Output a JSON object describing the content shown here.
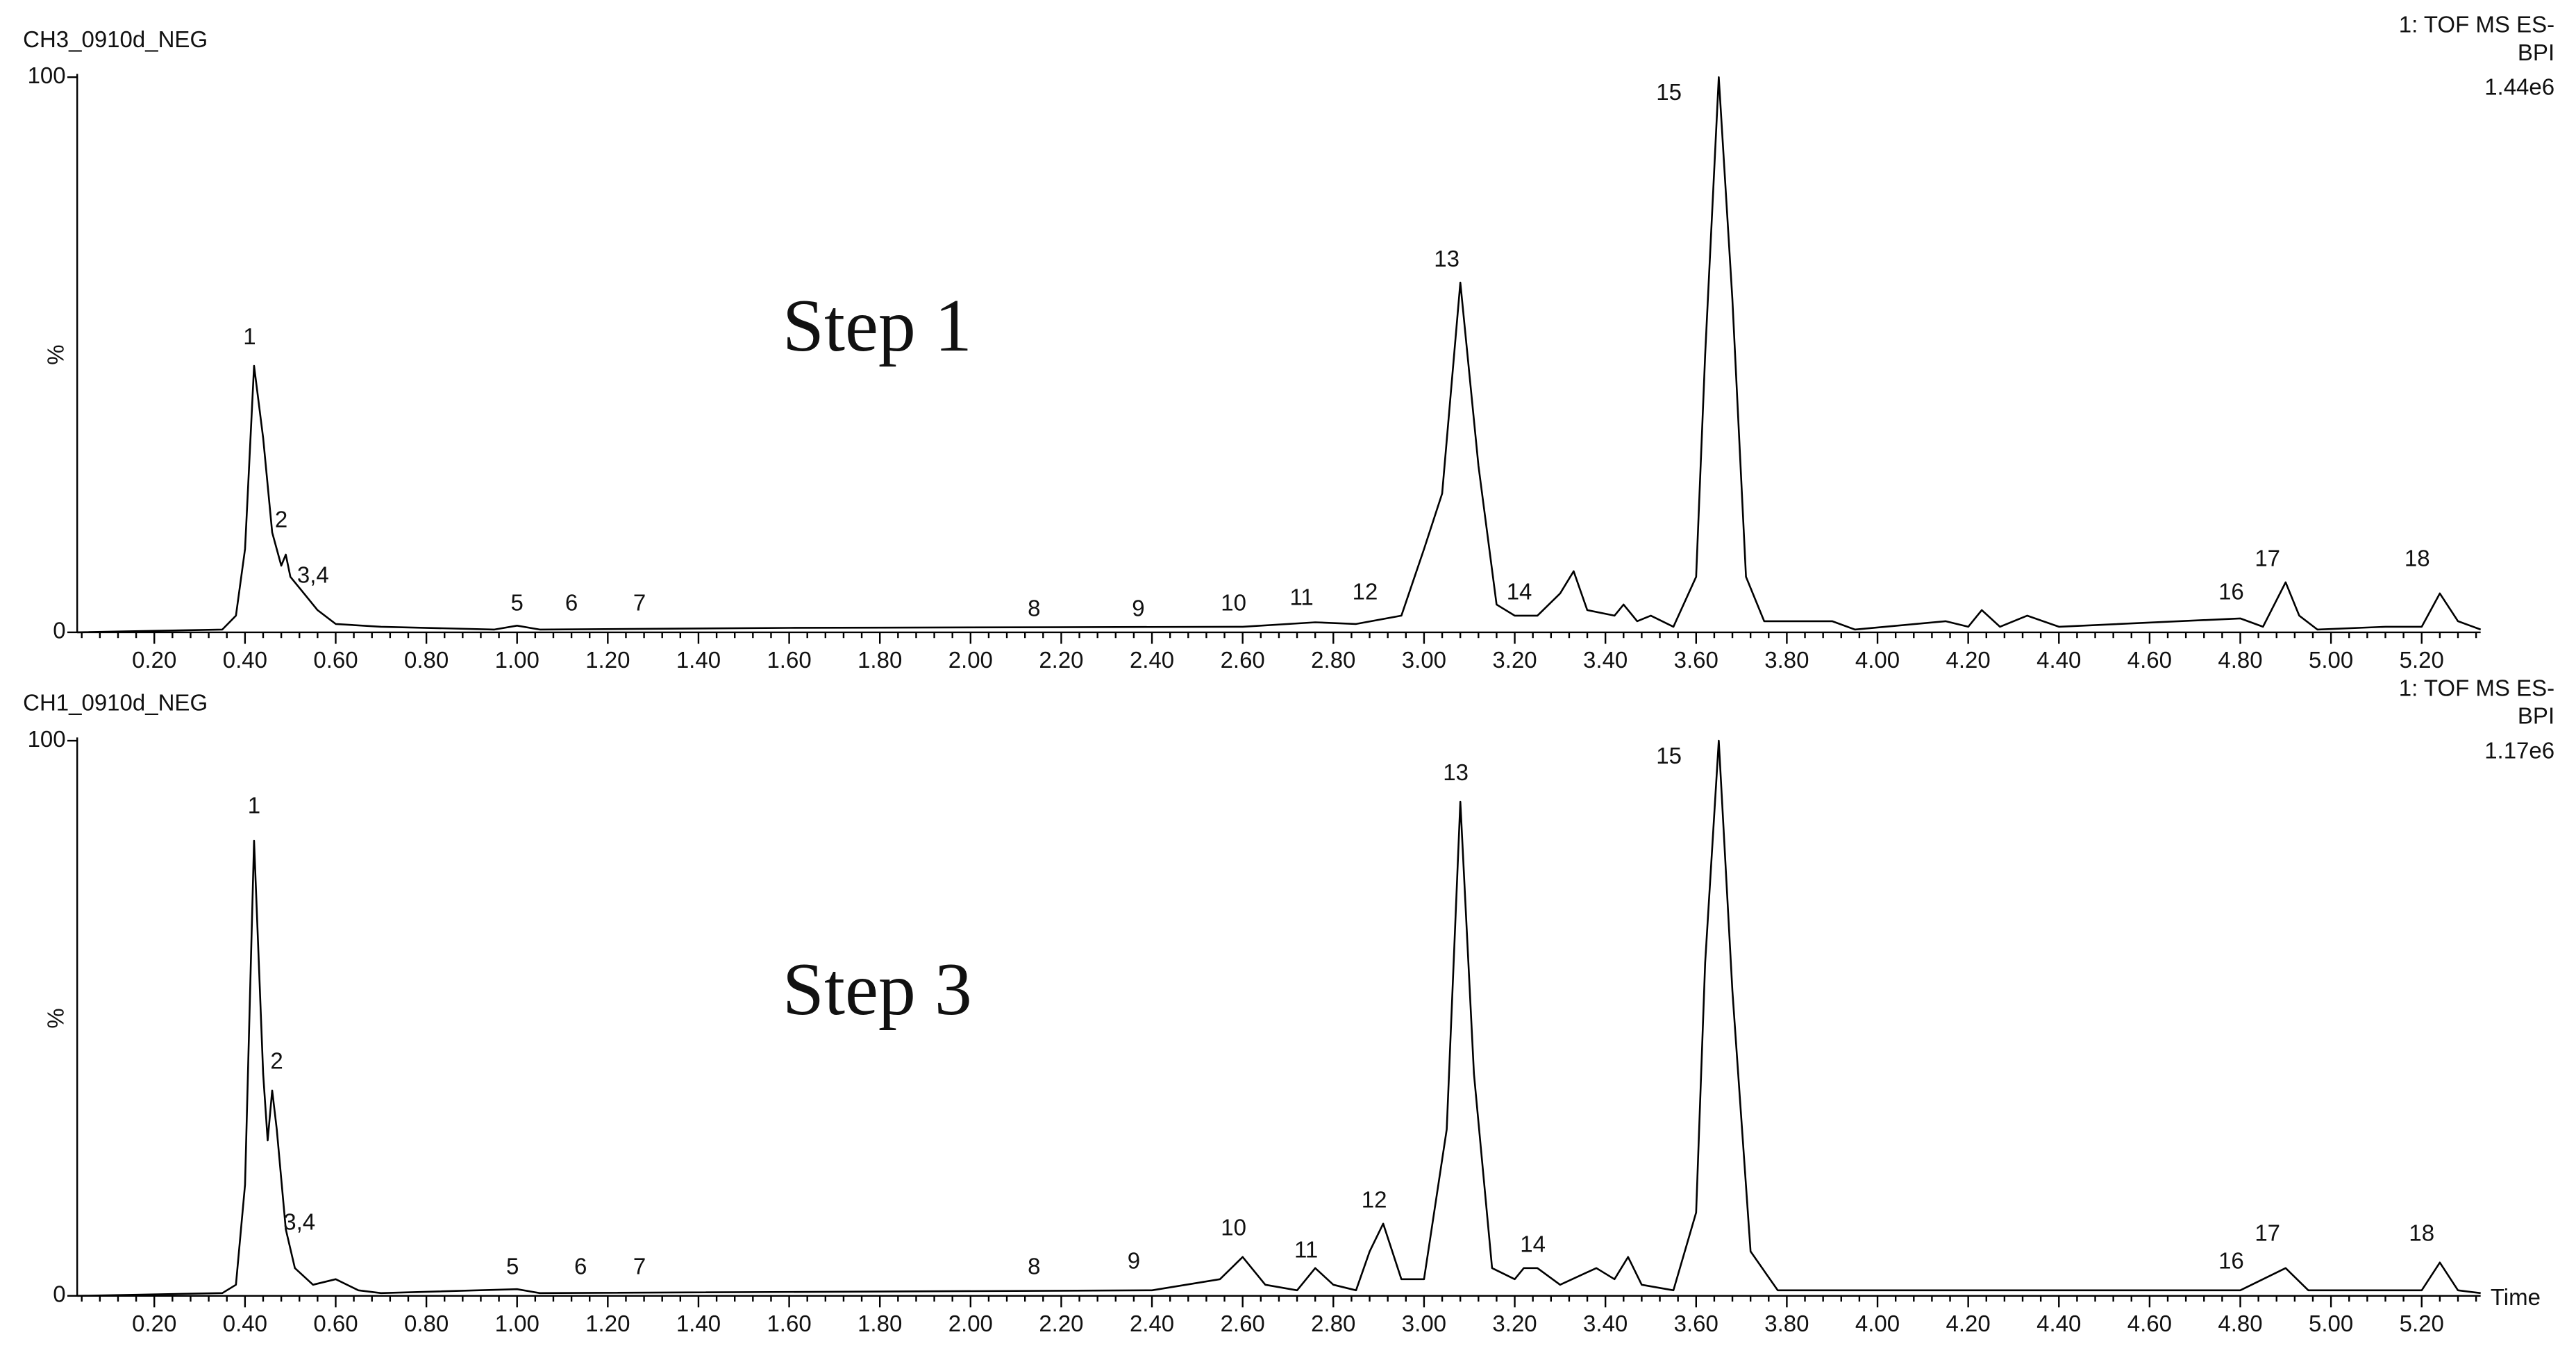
{
  "chart_data": [
    {
      "type": "line",
      "title": "CH3_0910d_NEG",
      "header": [
        "1: TOF MS ES-",
        "BPI",
        "1.44e6"
      ],
      "annotation": "Step 1",
      "y_label": "%",
      "color": "#000000",
      "xlim": [
        0.03,
        5.33
      ],
      "ylim": [
        0,
        100
      ],
      "yticks": [
        0,
        100
      ],
      "xticks": [
        {
          "value": 0.2,
          "label": "0.20"
        },
        {
          "value": 0.4,
          "label": "0.40"
        },
        {
          "value": 0.6,
          "label": "0.60"
        },
        {
          "value": 0.8,
          "label": "0.80"
        },
        {
          "value": 1.0,
          "label": "1.00"
        },
        {
          "value": 1.2,
          "label": "1.20"
        },
        {
          "value": 1.4,
          "label": "1.40"
        },
        {
          "value": 1.6,
          "label": "1.60"
        },
        {
          "value": 1.8,
          "label": "1.80"
        },
        {
          "value": 2.0,
          "label": "2.00"
        },
        {
          "value": 2.2,
          "label": "2.20"
        },
        {
          "value": 2.4,
          "label": "2.40"
        },
        {
          "value": 2.6,
          "label": "2.60"
        },
        {
          "value": 2.8,
          "label": "2.80"
        },
        {
          "value": 3.0,
          "label": "3.00"
        },
        {
          "value": 3.2,
          "label": "3.20"
        },
        {
          "value": 3.4,
          "label": "3.40"
        },
        {
          "value": 3.6,
          "label": "3.60"
        },
        {
          "value": 3.8,
          "label": "3.80"
        },
        {
          "value": 4.0,
          "label": "4.00"
        },
        {
          "value": 4.2,
          "label": "4.20"
        },
        {
          "value": 4.4,
          "label": "4.40"
        },
        {
          "value": 4.6,
          "label": "4.60"
        },
        {
          "value": 4.8,
          "label": "4.80"
        },
        {
          "value": 5.0,
          "label": "5.00"
        },
        {
          "value": 5.2,
          "label": "5.20"
        }
      ],
      "x": [
        0.03,
        0.35,
        0.38,
        0.4,
        0.42,
        0.44,
        0.46,
        0.48,
        0.49,
        0.5,
        0.53,
        0.56,
        0.6,
        0.7,
        0.95,
        1.0,
        1.05,
        1.6,
        2.6,
        2.76,
        2.85,
        2.95,
        3.0,
        3.04,
        3.08,
        3.12,
        3.16,
        3.2,
        3.25,
        3.3,
        3.33,
        3.36,
        3.42,
        3.44,
        3.47,
        3.5,
        3.55,
        3.6,
        3.62,
        3.65,
        3.68,
        3.71,
        3.75,
        3.9,
        3.95,
        4.15,
        4.2,
        4.23,
        4.27,
        4.33,
        4.4,
        4.8,
        4.85,
        4.9,
        4.93,
        4.97,
        5.12,
        5.2,
        5.24,
        5.28,
        5.33
      ],
      "values": [
        0,
        0.5,
        3,
        15,
        48,
        35,
        18,
        12,
        14,
        10,
        7,
        4,
        1.5,
        1,
        0.5,
        1.2,
        0.5,
        0.8,
        1,
        1.8,
        1.5,
        3,
        15,
        25,
        63,
        30,
        5,
        3,
        3,
        7,
        11,
        4,
        3,
        5,
        2,
        3,
        1,
        10,
        50,
        100,
        60,
        10,
        2,
        2,
        0.5,
        2,
        1,
        4,
        1,
        3,
        1,
        2.5,
        1,
        9,
        3,
        0.5,
        1,
        1,
        7,
        2,
        0.5
      ],
      "peak_labels": [
        {
          "text": "1",
          "x": 0.41,
          "y": 53
        },
        {
          "text": "2",
          "x": 0.48,
          "y": 20
        },
        {
          "text": "3,4",
          "x": 0.55,
          "y": 10
        },
        {
          "text": "5",
          "x": 1.0,
          "y": 5
        },
        {
          "text": "6",
          "x": 1.12,
          "y": 5
        },
        {
          "text": "7",
          "x": 1.27,
          "y": 5
        },
        {
          "text": "8",
          "x": 2.14,
          "y": 4
        },
        {
          "text": "9",
          "x": 2.37,
          "y": 4
        },
        {
          "text": "10",
          "x": 2.58,
          "y": 5
        },
        {
          "text": "11",
          "x": 2.73,
          "y": 6
        },
        {
          "text": "12",
          "x": 2.87,
          "y": 7
        },
        {
          "text": "13",
          "x": 3.05,
          "y": 67
        },
        {
          "text": "14",
          "x": 3.21,
          "y": 7
        },
        {
          "text": "15",
          "x": 3.54,
          "y": 97
        },
        {
          "text": "16",
          "x": 4.78,
          "y": 7
        },
        {
          "text": "17",
          "x": 4.86,
          "y": 13
        },
        {
          "text": "18",
          "x": 5.19,
          "y": 13
        }
      ]
    },
    {
      "type": "line",
      "title": "CH1_0910d_NEG",
      "header": [
        "1: TOF MS ES-",
        "BPI",
        "1.17e6"
      ],
      "annotation": "Step 3",
      "y_label": "%",
      "x_label": "Time",
      "color": "#000000",
      "xlim": [
        0.03,
        5.33
      ],
      "ylim": [
        0,
        100
      ],
      "yticks": [
        0,
        100
      ],
      "xticks": [
        {
          "value": 0.2,
          "label": "0.20"
        },
        {
          "value": 0.4,
          "label": "0.40"
        },
        {
          "value": 0.6,
          "label": "0.60"
        },
        {
          "value": 0.8,
          "label": "0.80"
        },
        {
          "value": 1.0,
          "label": "1.00"
        },
        {
          "value": 1.2,
          "label": "1.20"
        },
        {
          "value": 1.4,
          "label": "1.40"
        },
        {
          "value": 1.6,
          "label": "1.60"
        },
        {
          "value": 1.8,
          "label": "1.80"
        },
        {
          "value": 2.0,
          "label": "2.00"
        },
        {
          "value": 2.2,
          "label": "2.20"
        },
        {
          "value": 2.4,
          "label": "2.40"
        },
        {
          "value": 2.6,
          "label": "2.60"
        },
        {
          "value": 2.8,
          "label": "2.80"
        },
        {
          "value": 3.0,
          "label": "3.00"
        },
        {
          "value": 3.2,
          "label": "3.20"
        },
        {
          "value": 3.4,
          "label": "3.40"
        },
        {
          "value": 3.6,
          "label": "3.60"
        },
        {
          "value": 3.8,
          "label": "3.80"
        },
        {
          "value": 4.0,
          "label": "4.00"
        },
        {
          "value": 4.2,
          "label": "4.20"
        },
        {
          "value": 4.4,
          "label": "4.40"
        },
        {
          "value": 4.6,
          "label": "4.60"
        },
        {
          "value": 4.8,
          "label": "4.80"
        },
        {
          "value": 5.0,
          "label": "5.00"
        },
        {
          "value": 5.2,
          "label": "5.20"
        }
      ],
      "x": [
        0.03,
        0.35,
        0.38,
        0.4,
        0.42,
        0.44,
        0.45,
        0.46,
        0.47,
        0.49,
        0.51,
        0.55,
        0.6,
        0.65,
        0.7,
        1.0,
        1.05,
        2.4,
        2.55,
        2.6,
        2.65,
        2.72,
        2.76,
        2.8,
        2.85,
        2.88,
        2.91,
        2.95,
        3.0,
        3.05,
        3.08,
        3.11,
        3.15,
        3.2,
        3.22,
        3.25,
        3.3,
        3.38,
        3.42,
        3.45,
        3.48,
        3.55,
        3.6,
        3.62,
        3.65,
        3.68,
        3.72,
        3.78,
        4.5,
        4.8,
        4.9,
        4.95,
        5.2,
        5.24,
        5.28,
        5.33
      ],
      "values": [
        0,
        0.5,
        2,
        20,
        82,
        40,
        28,
        37,
        30,
        12,
        5,
        2,
        3,
        1,
        0.5,
        1.2,
        0.5,
        1,
        3,
        7,
        2,
        1,
        5,
        2,
        1,
        8,
        13,
        3,
        3,
        30,
        89,
        40,
        5,
        3,
        5,
        5,
        2,
        5,
        3,
        7,
        2,
        1,
        15,
        60,
        100,
        55,
        8,
        1,
        1,
        1,
        5,
        1,
        1,
        6,
        1,
        0.5
      ],
      "peak_labels": [
        {
          "text": "1",
          "x": 0.42,
          "y": 88
        },
        {
          "text": "2",
          "x": 0.47,
          "y": 42
        },
        {
          "text": "3,4",
          "x": 0.52,
          "y": 13
        },
        {
          "text": "5",
          "x": 0.99,
          "y": 5
        },
        {
          "text": "6",
          "x": 1.14,
          "y": 5
        },
        {
          "text": "7",
          "x": 1.27,
          "y": 5
        },
        {
          "text": "8",
          "x": 2.14,
          "y": 5
        },
        {
          "text": "9",
          "x": 2.36,
          "y": 6
        },
        {
          "text": "10",
          "x": 2.58,
          "y": 12
        },
        {
          "text": "11",
          "x": 2.74,
          "y": 8
        },
        {
          "text": "12",
          "x": 2.89,
          "y": 17
        },
        {
          "text": "13",
          "x": 3.07,
          "y": 94
        },
        {
          "text": "14",
          "x": 3.24,
          "y": 9
        },
        {
          "text": "15",
          "x": 3.54,
          "y": 97
        },
        {
          "text": "16",
          "x": 4.78,
          "y": 6
        },
        {
          "text": "17",
          "x": 4.86,
          "y": 11
        },
        {
          "text": "18",
          "x": 5.2,
          "y": 11
        }
      ]
    }
  ]
}
